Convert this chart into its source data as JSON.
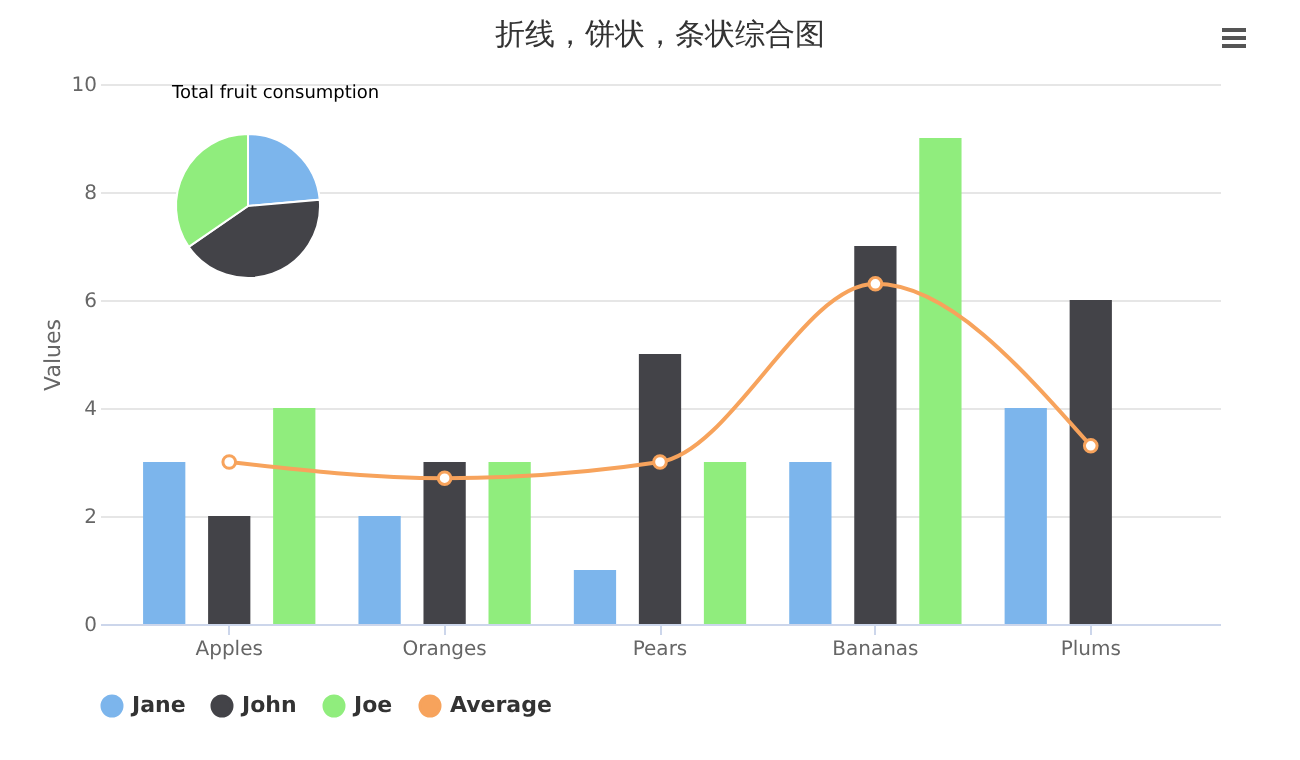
{
  "chart_data": [
    {
      "type": "bar",
      "title": "折线，饼状，条状综合图",
      "ylabel": "Values",
      "categories": [
        "Apples",
        "Oranges",
        "Pears",
        "Bananas",
        "Plums"
      ],
      "series": [
        {
          "name": "Jane",
          "color": "#7cb5ec",
          "values": [
            3,
            2,
            1,
            3,
            4
          ]
        },
        {
          "name": "John",
          "color": "#434348",
          "values": [
            2,
            3,
            5,
            7,
            6
          ]
        },
        {
          "name": "Joe",
          "color": "#90ed7d",
          "values": [
            4,
            3,
            3,
            9,
            0
          ]
        },
        {
          "name": "Average",
          "type": "line",
          "color": "#f7a35c",
          "values": [
            3,
            2.7,
            3,
            6.3,
            3.3
          ]
        }
      ],
      "ylim": [
        0,
        10
      ],
      "yticks": [
        0,
        2,
        4,
        6,
        8,
        10
      ],
      "grid": "y",
      "legend": "bottom",
      "marker": "circle"
    },
    {
      "type": "pie",
      "title": "Total fruit consumption",
      "categories": [
        null,
        null,
        null
      ],
      "values": [
        23.6,
        41.8,
        34.6
      ],
      "colors": [
        "#7cb5ec",
        "#434348",
        "#90ed7d"
      ]
    }
  ]
}
